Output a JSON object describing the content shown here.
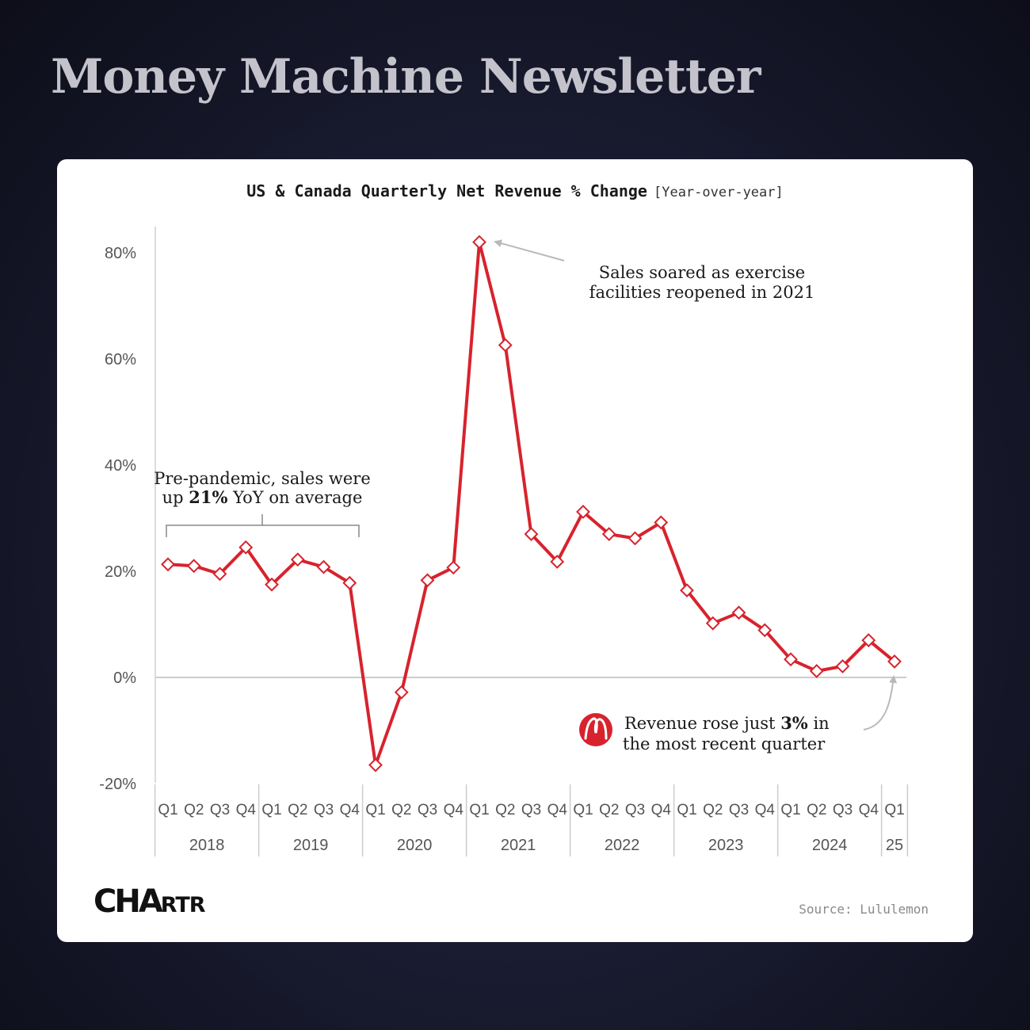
{
  "headline": "Money Machine Newsletter",
  "source": "Source: Lululemon",
  "brand_logo": {
    "part1": "CHA",
    "part2": "RTR"
  },
  "colors": {
    "line": "#d7232d",
    "marker_fill": "#ffffff",
    "zero_line": "#cccccc",
    "annotation_arrow": "#b9b9b9"
  },
  "chart_data": {
    "type": "line",
    "title": "US & Canada Quarterly Net Revenue % Change",
    "subtitle": "[Year-over-year]",
    "y_ticks": [
      "80%",
      "60%",
      "40%",
      "20%",
      "0%",
      "-20%"
    ],
    "y_tick_values": [
      80,
      60,
      40,
      20,
      0,
      -20
    ],
    "ylim": [
      -20,
      85
    ],
    "quarter_labels": [
      "Q1",
      "Q2",
      "Q3",
      "Q4",
      "Q1",
      "Q2",
      "Q3",
      "Q4",
      "Q1",
      "Q2",
      "Q3",
      "Q4",
      "Q1",
      "Q2",
      "Q3",
      "Q4",
      "Q1",
      "Q2",
      "Q3",
      "Q4",
      "Q1",
      "Q2",
      "Q3",
      "Q4",
      "Q1",
      "Q2",
      "Q3",
      "Q4",
      "Q1"
    ],
    "years": [
      "2018",
      "2019",
      "2020",
      "2021",
      "2022",
      "2023",
      "2024",
      "25"
    ],
    "series": [
      {
        "values": [
          21.3,
          21.0,
          19.5,
          24.5,
          17.5,
          22.2,
          20.8,
          17.8,
          -16.5,
          -2.8,
          18.3,
          20.7,
          82.0,
          62.6,
          27.0,
          21.8,
          31.2,
          27.0,
          26.2,
          29.2,
          16.4,
          10.2,
          12.2,
          8.9,
          3.4,
          1.2,
          2.1,
          7.0,
          3.0
        ]
      }
    ],
    "annotations": [
      {
        "id": "pre_pandemic",
        "line1": "Pre-pandemic, sales were",
        "line2_pre": "up ",
        "line2_bold": "21%",
        "line2_post": " YoY on average"
      },
      {
        "id": "peak",
        "line1": "Sales soared as exercise",
        "line2": "facilities reopened in 2021"
      },
      {
        "id": "recent",
        "line1_pre": "Revenue rose just ",
        "line1_bold": "3%",
        "line1_post": " in",
        "line2": "the most recent quarter",
        "icon": "lululemon-logo-icon"
      }
    ]
  }
}
